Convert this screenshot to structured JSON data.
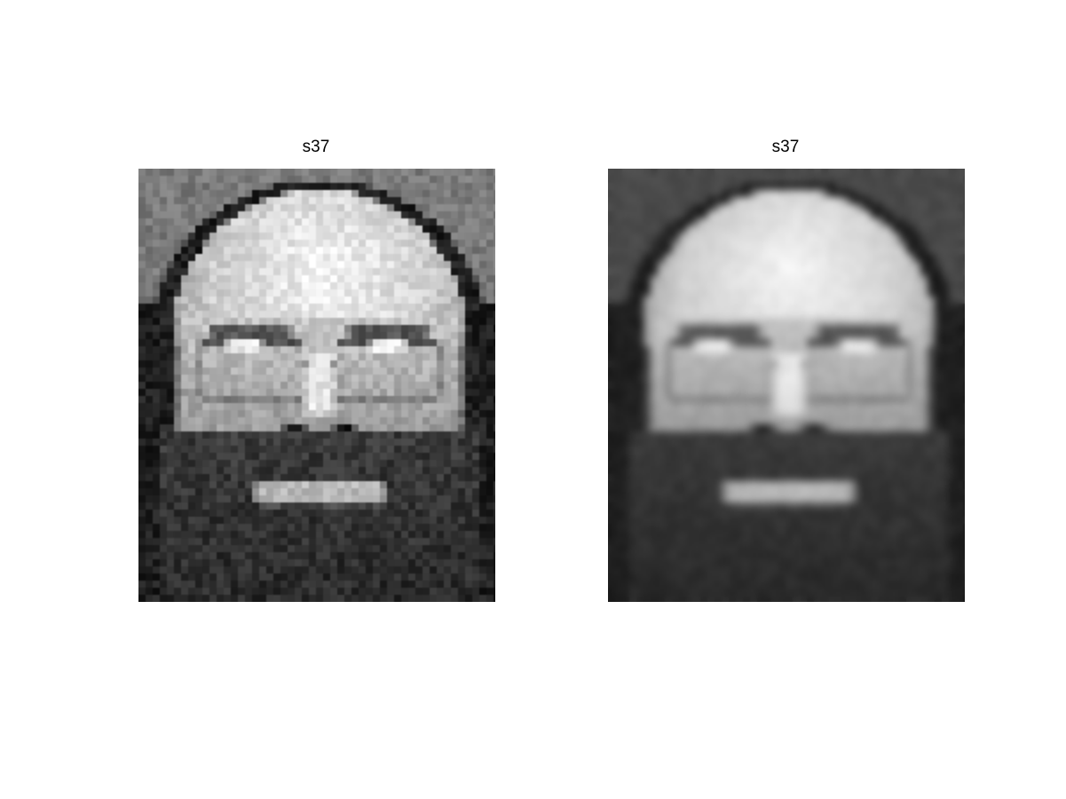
{
  "figure": {
    "panels": [
      {
        "title": "s37",
        "content": "original-face-image"
      },
      {
        "title": "s37",
        "content": "reconstructed-face-image"
      }
    ]
  }
}
